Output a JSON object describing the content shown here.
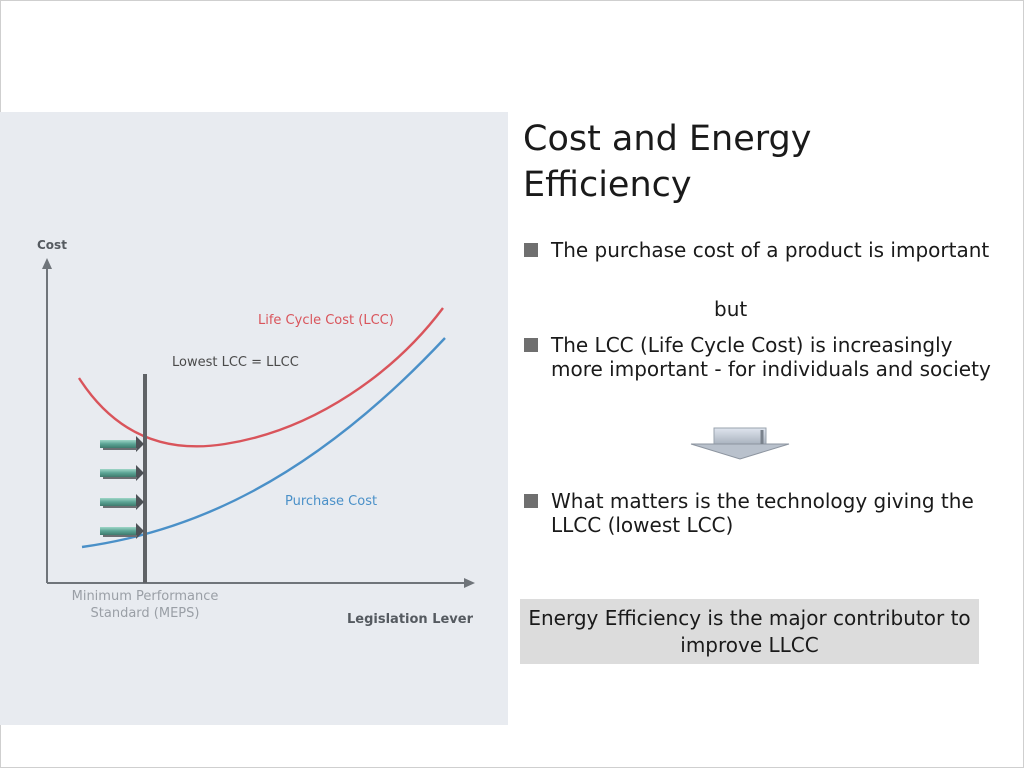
{
  "slide": {
    "title": "Cost and Energy Efficiency",
    "bullets": [
      "The purchase cost of a product is important",
      "The LCC (Life Cycle Cost) is increasingly more important  - for individuals and society",
      "What matters is the technology giving the LLCC (lowest LCC)"
    ],
    "connector": "but",
    "callout": "Energy Efficiency is the major contributor to improve LLCC"
  },
  "figure": {
    "y_axis_label": "Cost",
    "x_axis_label": "Legislation Lever",
    "lcc_label": "Life Cycle Cost (LCC)",
    "llcc_label": "Lowest LCC = LLCC",
    "purchase_label": "Purchase Cost",
    "meps_label": "Minimum Performance Standard (MEPS)",
    "colors": {
      "lcc": "#d9545b",
      "purchase": "#4a90c8",
      "axis": "#6f747a",
      "meps_bar": "#5f6266",
      "arrow": "#5aa394"
    },
    "icons": [
      "right-arrow-icon",
      "down-arrow-icon",
      "square-bullet-icon"
    ]
  }
}
